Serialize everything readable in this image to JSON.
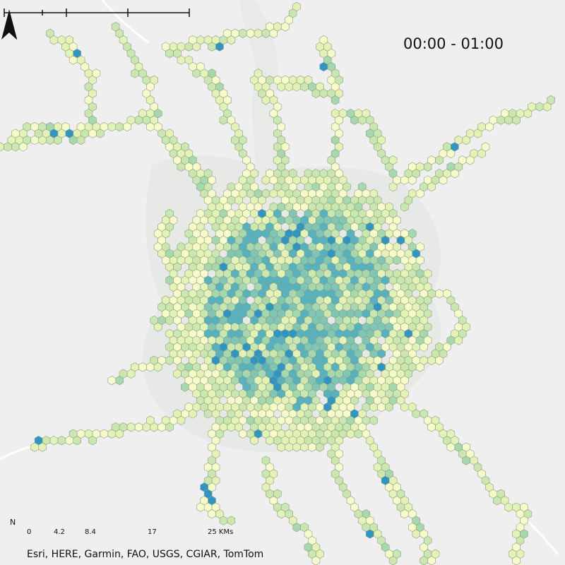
{
  "time_label": "00:00 - 01:00",
  "north_label": "N",
  "scale": {
    "ticks": [
      "0",
      "4.2",
      "8.4",
      "17",
      "25 KMs"
    ]
  },
  "attribution": "Esri, HERE, Garmin, FAO, USGS, CGIAR, TomTom",
  "colors": {
    "background": "#efefef",
    "land_shade": "#e6e8e6",
    "road": "#ffffff",
    "hex_stroke": "#8f9a86",
    "ramp": [
      "#f7fbc9",
      "#e3f2b5",
      "#c9e7ae",
      "#a6d8ad",
      "#7fc6b4",
      "#55b2bf",
      "#2f96c4"
    ]
  }
}
